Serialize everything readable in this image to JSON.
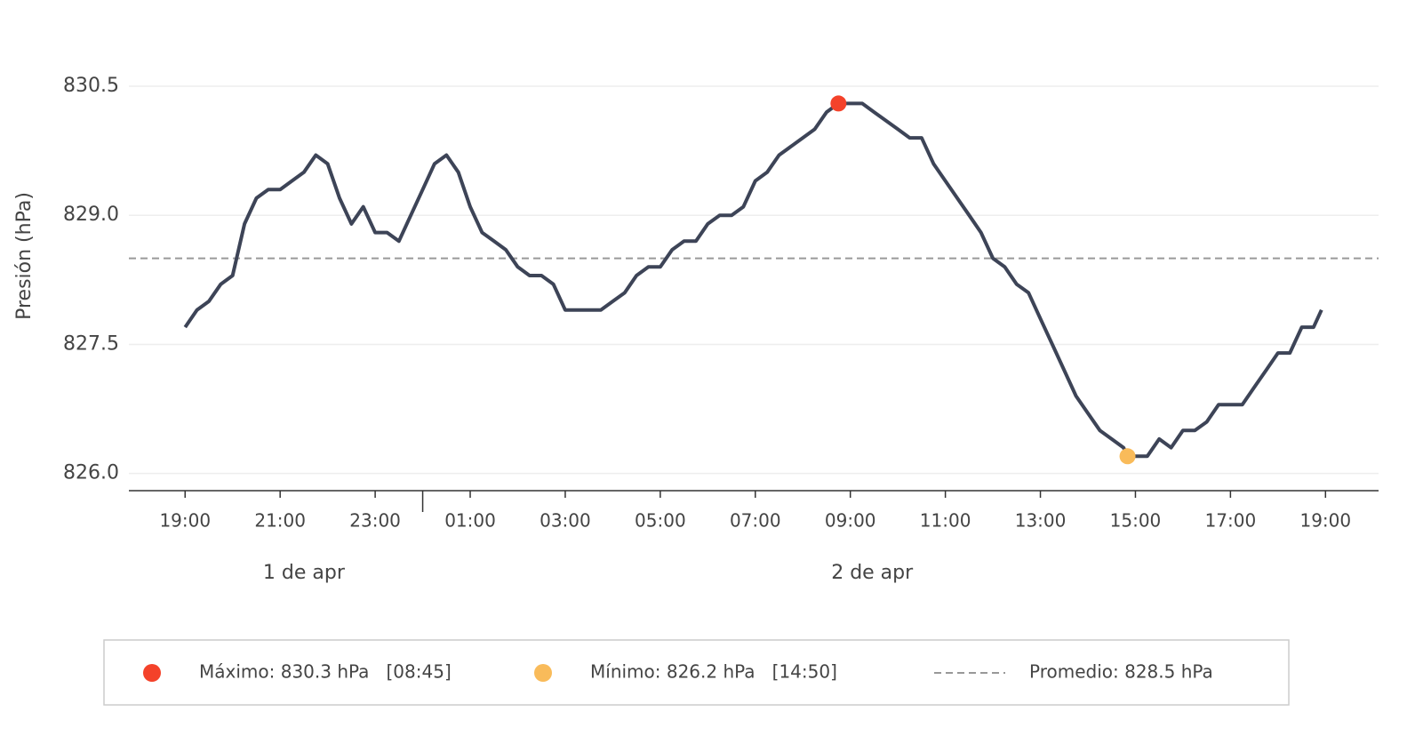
{
  "chart_data": {
    "type": "line",
    "y_label": "Presión (hPa)",
    "x": [
      "1 de apr 19:00",
      "1 de apr 19:15",
      "1 de apr 19:30",
      "1 de apr 19:45",
      "1 de apr 20:00",
      "1 de apr 20:15",
      "1 de apr 20:30",
      "1 de apr 20:45",
      "1 de apr 21:00",
      "1 de apr 21:15",
      "1 de apr 21:30",
      "1 de apr 21:45",
      "1 de apr 22:00",
      "1 de apr 22:15",
      "1 de apr 22:30",
      "1 de apr 22:45",
      "1 de apr 23:00",
      "1 de apr 23:15",
      "1 de apr 23:30",
      "1 de apr 23:45",
      "2 de apr 00:00",
      "2 de apr 00:15",
      "2 de apr 00:30",
      "2 de apr 00:45",
      "2 de apr 01:00",
      "2 de apr 01:15",
      "2 de apr 01:30",
      "2 de apr 01:45",
      "2 de apr 02:00",
      "2 de apr 02:15",
      "2 de apr 02:30",
      "2 de apr 02:45",
      "2 de apr 03:00",
      "2 de apr 03:15",
      "2 de apr 03:30",
      "2 de apr 03:45",
      "2 de apr 04:00",
      "2 de apr 04:15",
      "2 de apr 04:30",
      "2 de apr 04:45",
      "2 de apr 05:00",
      "2 de apr 05:15",
      "2 de apr 05:30",
      "2 de apr 05:45",
      "2 de apr 06:00",
      "2 de apr 06:15",
      "2 de apr 06:30",
      "2 de apr 06:45",
      "2 de apr 07:00",
      "2 de apr 07:15",
      "2 de apr 07:30",
      "2 de apr 07:45",
      "2 de apr 08:00",
      "2 de apr 08:15",
      "2 de apr 08:30",
      "2 de apr 08:45",
      "2 de apr 09:00",
      "2 de apr 09:15",
      "2 de apr 09:30",
      "2 de apr 09:45",
      "2 de apr 10:00",
      "2 de apr 10:15",
      "2 de apr 10:30",
      "2 de apr 10:45",
      "2 de apr 11:00",
      "2 de apr 11:15",
      "2 de apr 11:30",
      "2 de apr 11:45",
      "2 de apr 12:00",
      "2 de apr 12:15",
      "2 de apr 12:30",
      "2 de apr 12:45",
      "2 de apr 13:00",
      "2 de apr 13:15",
      "2 de apr 13:30",
      "2 de apr 13:45",
      "2 de apr 14:00",
      "2 de apr 14:15",
      "2 de apr 14:30",
      "2 de apr 14:45",
      "2 de apr 14:50",
      "2 de apr 15:00",
      "2 de apr 15:15",
      "2 de apr 15:30",
      "2 de apr 15:45",
      "2 de apr 16:00",
      "2 de apr 16:15",
      "2 de apr 16:30",
      "2 de apr 16:45",
      "2 de apr 17:00",
      "2 de apr 17:15",
      "2 de apr 17:30",
      "2 de apr 17:45",
      "2 de apr 18:00",
      "2 de apr 18:15",
      "2 de apr 18:30",
      "2 de apr 18:45",
      "2 de apr 18:55"
    ],
    "series": [
      {
        "color": "#3d4457",
        "values": [
          827.7,
          827.9,
          828.0,
          828.2,
          828.3,
          828.9,
          829.2,
          829.3,
          829.3,
          829.4,
          829.5,
          829.7,
          829.6,
          829.2,
          828.9,
          829.1,
          828.8,
          828.8,
          828.7,
          829.0,
          829.3,
          829.6,
          829.7,
          829.5,
          829.1,
          828.8,
          828.7,
          828.6,
          828.4,
          828.3,
          828.3,
          828.2,
          827.9,
          827.9,
          827.9,
          827.9,
          828.0,
          828.1,
          828.3,
          828.4,
          828.4,
          828.6,
          828.7,
          828.7,
          828.9,
          829.0,
          829.0,
          829.1,
          829.4,
          829.5,
          829.7,
          829.8,
          829.9,
          830.0,
          830.2,
          830.3,
          830.3,
          830.3,
          830.2,
          830.1,
          830.0,
          829.9,
          829.9,
          829.6,
          829.4,
          829.2,
          829.0,
          828.8,
          828.5,
          828.4,
          828.2,
          828.1,
          827.8,
          827.5,
          827.2,
          826.9,
          826.7,
          826.5,
          826.4,
          826.3,
          826.2,
          826.2,
          826.2,
          826.4,
          826.3,
          826.5,
          826.5,
          826.6,
          826.8,
          826.8,
          826.8,
          827.0,
          827.2,
          827.4,
          827.4,
          827.7,
          827.7,
          827.9
        ]
      }
    ],
    "max": {
      "x": "2 de apr 08:45",
      "value": 830.3,
      "color": "#f4422a",
      "label": "Máximo: 830.3 hPa   [08:45]"
    },
    "min": {
      "x": "2 de apr 14:50",
      "value": 826.2,
      "color": "#f9bb5a",
      "label": "Mínimo: 826.2 hPa   [14:50]"
    },
    "mean": {
      "value": 828.5,
      "color": "#999999",
      "label": "Promedio: 828.5 hPa"
    },
    "days": [
      "1 de apr",
      "2 de apr"
    ],
    "xlim": [
      "1 de apr 17:49",
      "2 de apr 20:07"
    ],
    "xticks": [
      {
        "value": "1 de apr 19:00",
        "label": "19:00"
      },
      {
        "value": "1 de apr 21:00",
        "label": "21:00"
      },
      {
        "value": "1 de apr 23:00",
        "label": "23:00"
      },
      {
        "value": "2 de apr 01:00",
        "label": "01:00"
      },
      {
        "value": "2 de apr 03:00",
        "label": "03:00"
      },
      {
        "value": "2 de apr 05:00",
        "label": "05:00"
      },
      {
        "value": "2 de apr 07:00",
        "label": "07:00"
      },
      {
        "value": "2 de apr 09:00",
        "label": "09:00"
      },
      {
        "value": "2 de apr 11:00",
        "label": "11:00"
      },
      {
        "value": "2 de apr 13:00",
        "label": "13:00"
      },
      {
        "value": "2 de apr 15:00",
        "label": "15:00"
      },
      {
        "value": "2 de apr 17:00",
        "label": "17:00"
      },
      {
        "value": "2 de apr 19:00",
        "label": "19:00"
      }
    ],
    "ylim": [
      825.8,
      830.8
    ],
    "yticks": [
      {
        "value": 826.0,
        "label": "826.0"
      },
      {
        "value": 827.5,
        "label": "827.5"
      },
      {
        "value": 829.0,
        "label": "829.0"
      },
      {
        "value": 830.5,
        "label": "830.5"
      }
    ],
    "grid": true
  }
}
